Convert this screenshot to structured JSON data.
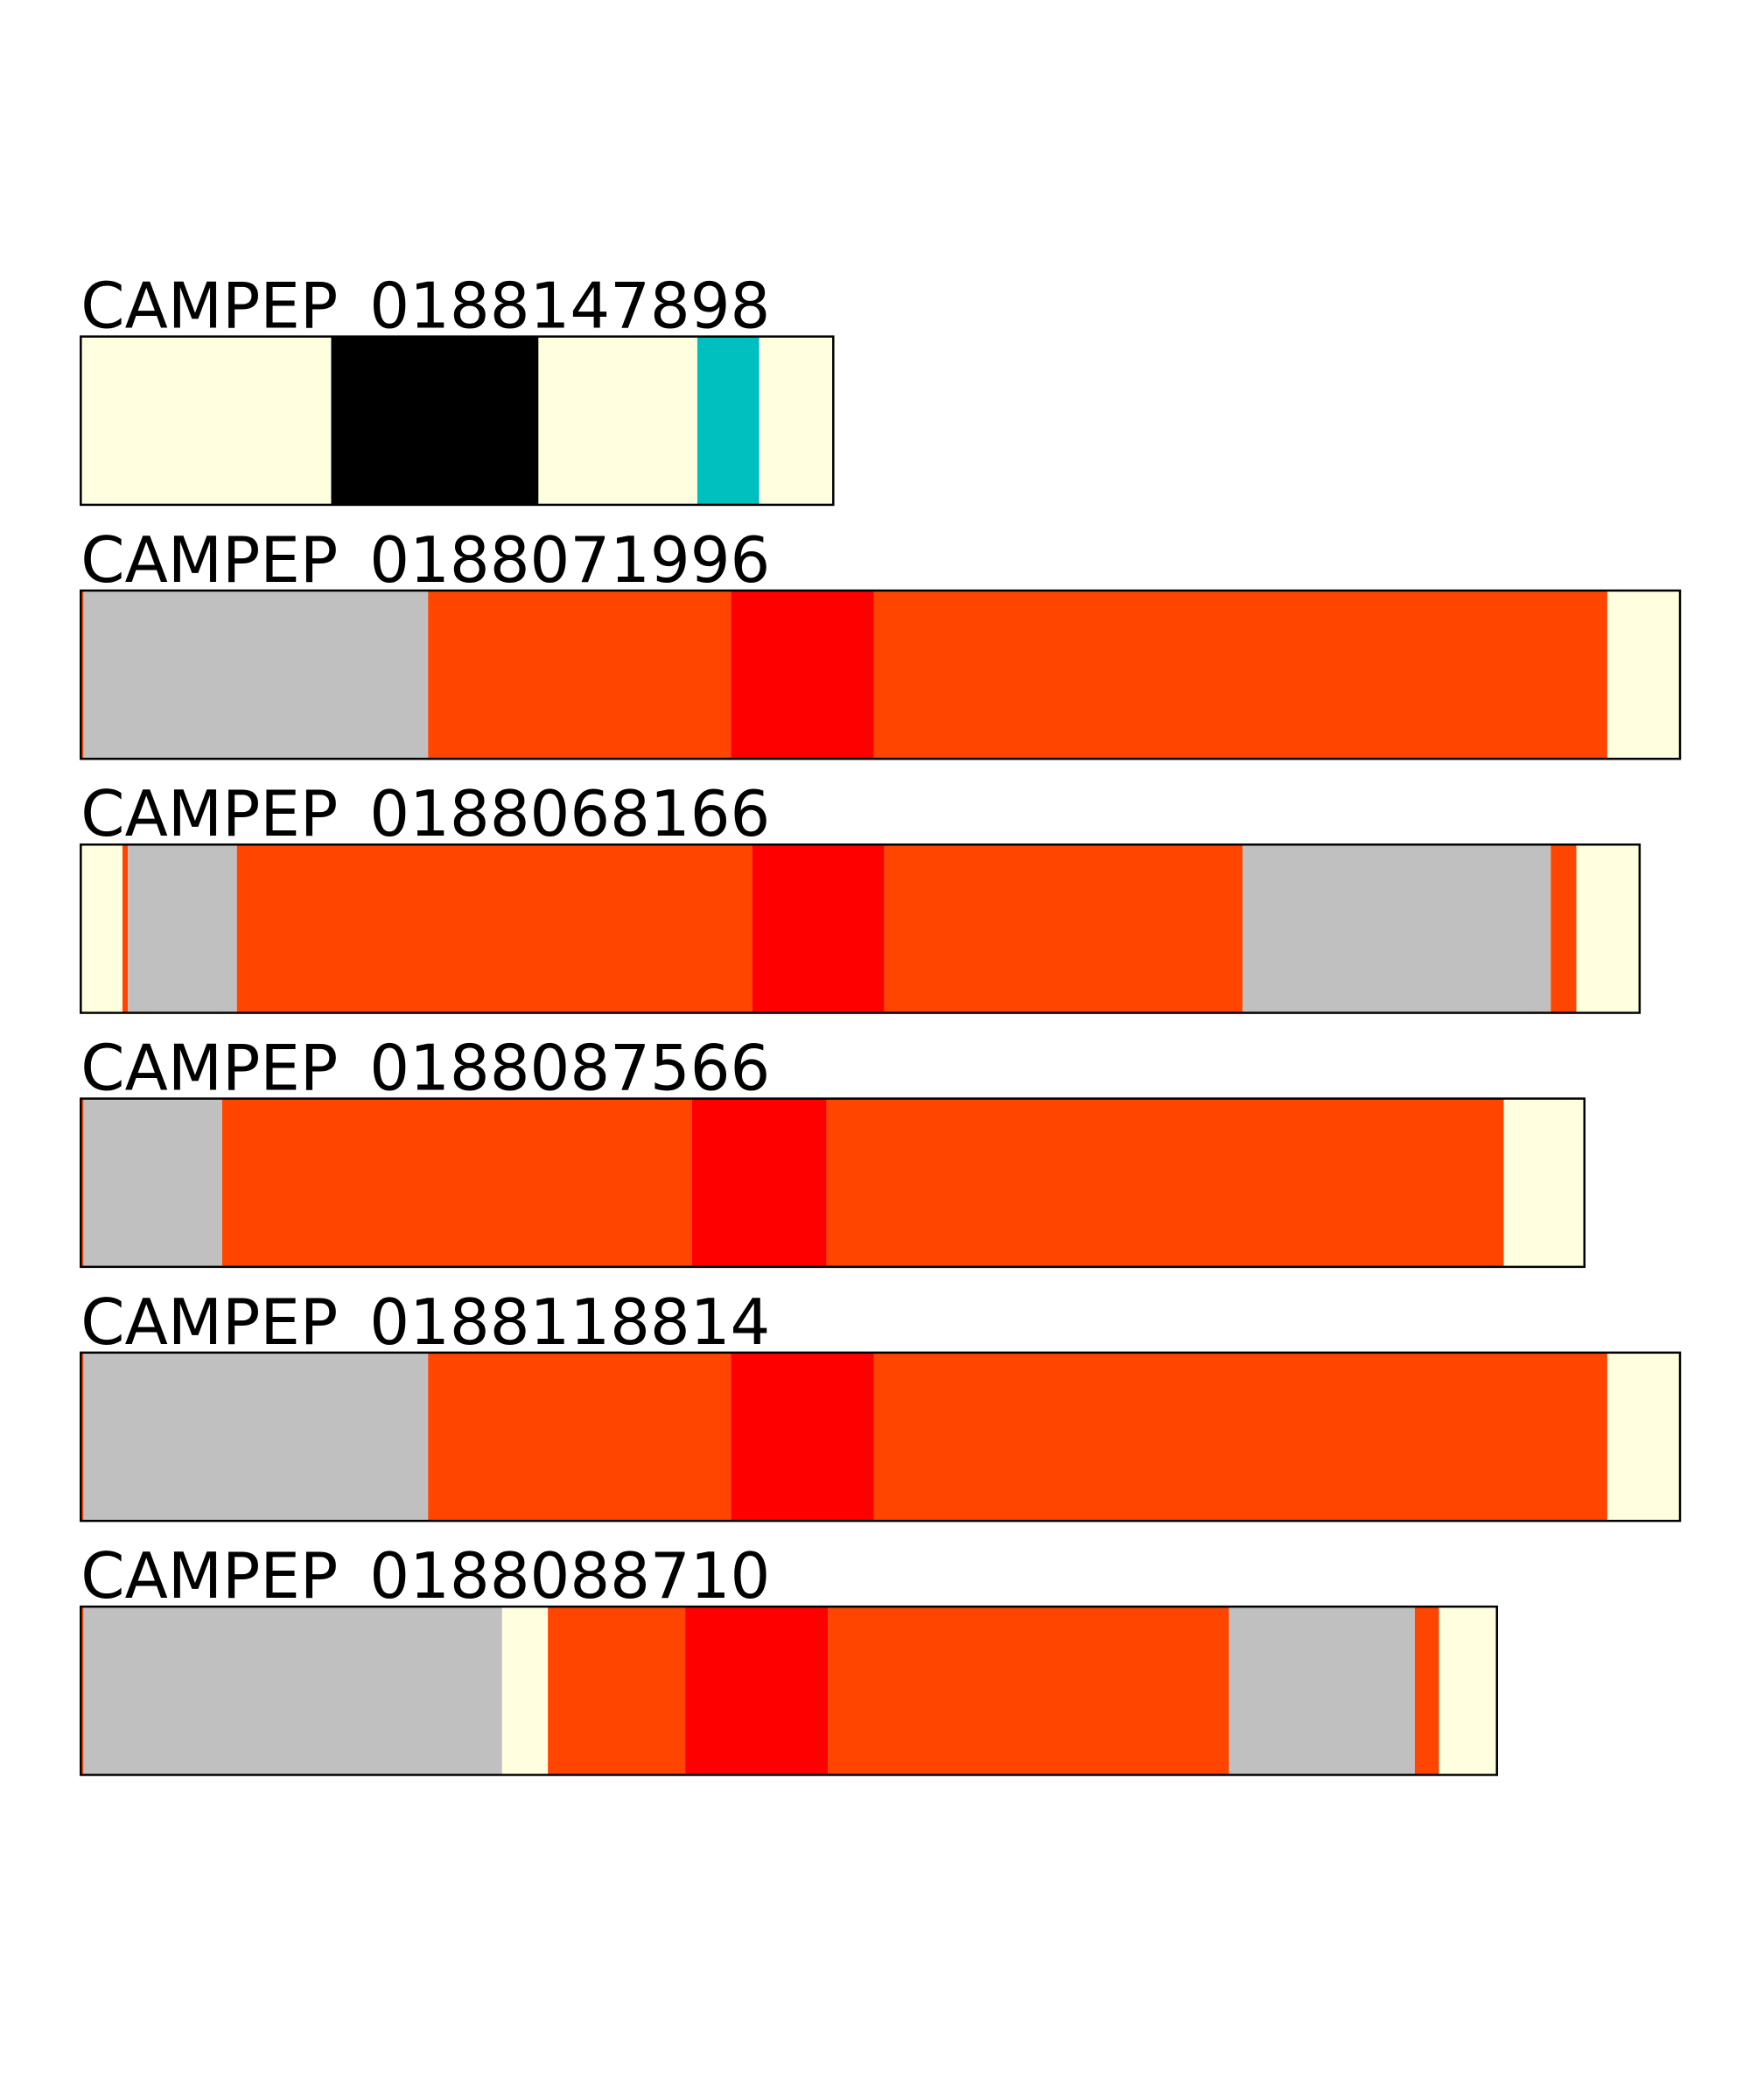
{
  "chart_data": {
    "type": "segments",
    "rows": [
      {
        "label": "CAMPEP_0188147898",
        "segments": [
          {
            "color": "#ffffe0",
            "value": 186
          },
          {
            "color": "#000000",
            "value": 154
          },
          {
            "color": "#ffffe0",
            "value": 118
          },
          {
            "color": "#00bfbf",
            "value": 46
          },
          {
            "color": "#ffffe0",
            "value": 55
          }
        ]
      },
      {
        "label": "CAMPEP_0188071996",
        "segments": [
          {
            "color": "#ff4500",
            "value": 2
          },
          {
            "color": "#c0c0c0",
            "value": 256
          },
          {
            "color": "#ff4500",
            "value": 225
          },
          {
            "color": "#ff0000",
            "value": 106
          },
          {
            "color": "#ff4500",
            "value": 545
          },
          {
            "color": "#ffffe0",
            "value": 54
          }
        ]
      },
      {
        "label": "CAMPEP_0188068166",
        "segments": [
          {
            "color": "#ffffe0",
            "value": 31
          },
          {
            "color": "#ff4500",
            "value": 4
          },
          {
            "color": "#c0c0c0",
            "value": 81
          },
          {
            "color": "#ff4500",
            "value": 383
          },
          {
            "color": "#ff0000",
            "value": 98
          },
          {
            "color": "#ff4500",
            "value": 266
          },
          {
            "color": "#c0c0c0",
            "value": 229
          },
          {
            "color": "#ff4500",
            "value": 19
          },
          {
            "color": "#ffffe0",
            "value": 47
          }
        ]
      },
      {
        "label": "CAMPEP_0188087566",
        "segments": [
          {
            "color": "#ff4500",
            "value": 2
          },
          {
            "color": "#c0c0c0",
            "value": 103
          },
          {
            "color": "#ff4500",
            "value": 349
          },
          {
            "color": "#ff0000",
            "value": 100
          },
          {
            "color": "#ff4500",
            "value": 503
          },
          {
            "color": "#ffffe0",
            "value": 60
          }
        ]
      },
      {
        "label": "CAMPEP_0188118814",
        "segments": [
          {
            "color": "#ff4500",
            "value": 2
          },
          {
            "color": "#c0c0c0",
            "value": 256
          },
          {
            "color": "#ff4500",
            "value": 225
          },
          {
            "color": "#ff0000",
            "value": 106
          },
          {
            "color": "#ff4500",
            "value": 545
          },
          {
            "color": "#ffffe0",
            "value": 54
          }
        ]
      },
      {
        "label": "CAMPEP_0188088710",
        "segments": [
          {
            "color": "#ff4500",
            "value": 2
          },
          {
            "color": "#c0c0c0",
            "value": 311
          },
          {
            "color": "#ffffe0",
            "value": 34
          },
          {
            "color": "#ff4500",
            "value": 102
          },
          {
            "color": "#ff0000",
            "value": 106
          },
          {
            "color": "#ff4500",
            "value": 298
          },
          {
            "color": "#c0c0c0",
            "value": 138
          },
          {
            "color": "#ff4500",
            "value": 18
          },
          {
            "color": "#ffffe0",
            "value": 43
          }
        ]
      }
    ]
  }
}
